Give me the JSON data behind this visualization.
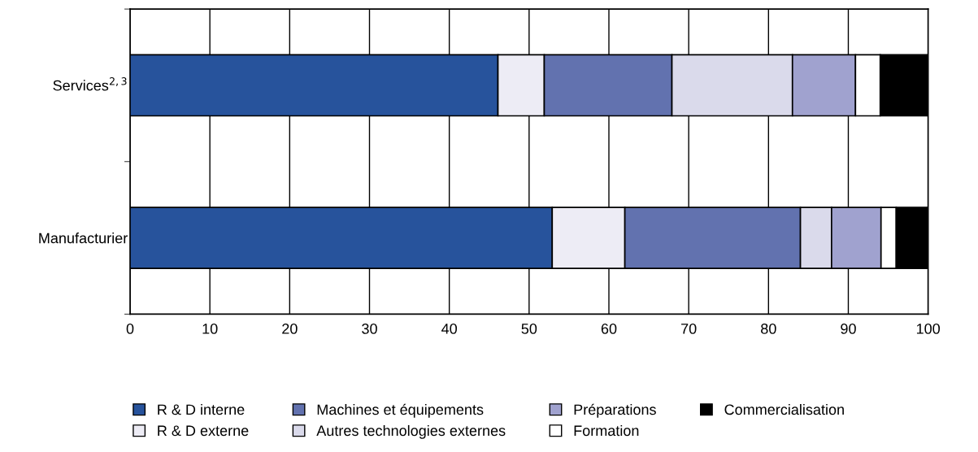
{
  "chart_data": {
    "type": "bar",
    "orientation": "horizontal",
    "stacked": true,
    "categories": [
      "Services$^{2,3}$",
      "Manufacturier"
    ],
    "series": [
      {
        "name": "R & D interne",
        "color": "#27539c",
        "values": [
          46.1,
          52.9
        ]
      },
      {
        "name": "R & D externe",
        "color": "#edecf5",
        "values": [
          5.8,
          9.1
        ]
      },
      {
        "name": "Machines et équipements",
        "color": "#6272af",
        "values": [
          16.0,
          22.0
        ]
      },
      {
        "name": "Autres technologies externes",
        "color": "#dadaeb",
        "values": [
          15.1,
          3.9
        ]
      },
      {
        "name": "Préparations",
        "color": "#a0a2cf",
        "values": [
          7.9,
          6.2
        ]
      },
      {
        "name": "Formation",
        "color": "#ffffff",
        "values": [
          3.1,
          1.9
        ]
      },
      {
        "name": "Commercialisation",
        "color": "#000000",
        "values": [
          6.0,
          4.0
        ]
      }
    ],
    "xlim": [
      0,
      100
    ],
    "xticks": [
      0,
      10,
      20,
      30,
      40,
      50,
      60,
      70,
      80,
      90,
      100
    ],
    "grid": "x",
    "legend": "bottom"
  }
}
